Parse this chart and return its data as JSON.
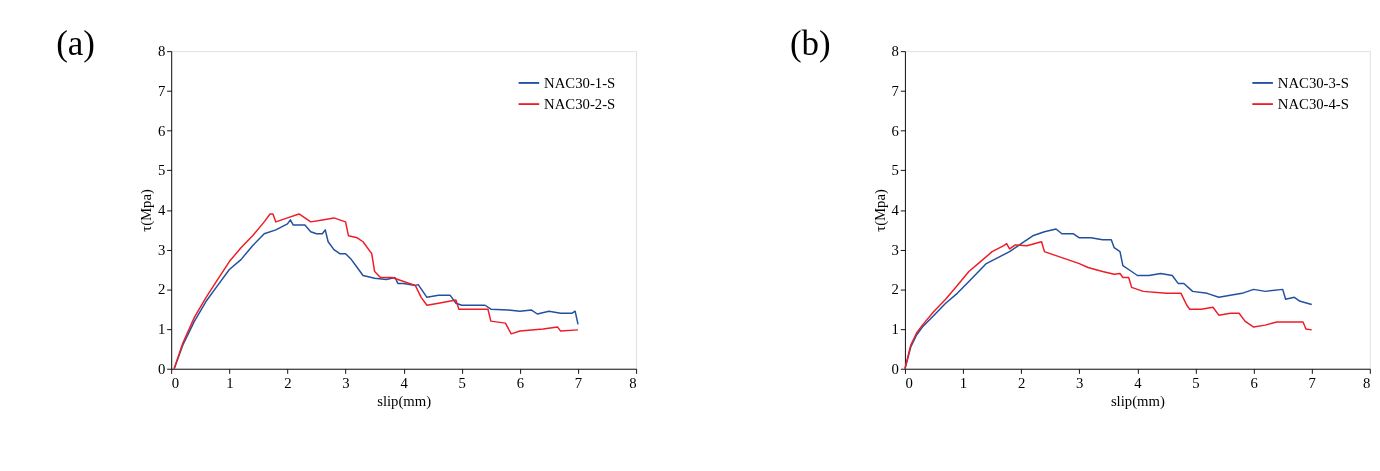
{
  "chart_data": [
    {
      "type": "line",
      "title": "(a)",
      "xlabel": "slip(mm)",
      "ylabel": "τ(Mpa)",
      "xlim": [
        0,
        8
      ],
      "ylim": [
        0,
        8
      ],
      "xticks": [
        0,
        1,
        2,
        3,
        4,
        5,
        6,
        7,
        8
      ],
      "yticks": [
        0,
        1,
        2,
        3,
        4,
        5,
        6,
        7,
        8
      ],
      "grid": false,
      "legend": "top right",
      "marker": "none",
      "line_style": "solid",
      "series": [
        {
          "name": "NAC30-1-S",
          "color": "#2150a0",
          "x": [
            0.05,
            0.2,
            0.4,
            0.6,
            0.8,
            1.0,
            1.2,
            1.4,
            1.6,
            1.8,
            2.0,
            2.05,
            2.1,
            2.3,
            2.4,
            2.5,
            2.6,
            2.65,
            2.7,
            2.8,
            2.9,
            3.0,
            3.1,
            3.2,
            3.3,
            3.5,
            3.7,
            3.85,
            3.9,
            4.0,
            4.2,
            4.25,
            4.4,
            4.6,
            4.8,
            4.9,
            5.0,
            5.2,
            5.4,
            5.5,
            5.8,
            6.0,
            6.2,
            6.3,
            6.5,
            6.7,
            6.9,
            6.95,
            7.0
          ],
          "values": [
            0,
            0.6,
            1.2,
            1.7,
            2.1,
            2.5,
            2.75,
            3.1,
            3.4,
            3.5,
            3.65,
            3.75,
            3.62,
            3.62,
            3.45,
            3.4,
            3.4,
            3.5,
            3.2,
            3.0,
            2.9,
            2.9,
            2.75,
            2.55,
            2.35,
            2.28,
            2.25,
            2.3,
            2.15,
            2.15,
            2.1,
            2.12,
            1.8,
            1.85,
            1.85,
            1.65,
            1.6,
            1.6,
            1.6,
            1.5,
            1.48,
            1.45,
            1.48,
            1.38,
            1.45,
            1.4,
            1.4,
            1.45,
            1.12
          ]
        },
        {
          "name": "NAC30-2-S",
          "color": "#ee1c25",
          "x": [
            0.05,
            0.2,
            0.4,
            0.6,
            0.8,
            1.0,
            1.2,
            1.4,
            1.6,
            1.7,
            1.75,
            1.8,
            1.9,
            2.0,
            2.2,
            2.3,
            2.4,
            2.6,
            2.8,
            3.0,
            3.05,
            3.2,
            3.3,
            3.45,
            3.5,
            3.6,
            3.8,
            3.9,
            4.2,
            4.3,
            4.4,
            4.6,
            4.9,
            4.95,
            5.2,
            5.45,
            5.5,
            5.75,
            5.85,
            6.0,
            6.4,
            6.65,
            6.7,
            7.0
          ],
          "values": [
            0,
            0.65,
            1.3,
            1.8,
            2.25,
            2.7,
            3.05,
            3.35,
            3.7,
            3.9,
            3.9,
            3.7,
            3.75,
            3.8,
            3.9,
            3.8,
            3.7,
            3.75,
            3.8,
            3.7,
            3.35,
            3.3,
            3.2,
            2.9,
            2.45,
            2.3,
            2.3,
            2.25,
            2.1,
            1.8,
            1.6,
            1.65,
            1.73,
            1.5,
            1.5,
            1.5,
            1.2,
            1.15,
            0.88,
            0.95,
            1.0,
            1.05,
            0.95,
            0.98
          ]
        }
      ]
    },
    {
      "type": "line",
      "title": "(b)",
      "xlabel": "slip(mm)",
      "ylabel": "τ(Mpa)",
      "xlim": [
        0,
        8
      ],
      "ylim": [
        0,
        8
      ],
      "xticks": [
        0,
        1,
        2,
        3,
        4,
        5,
        6,
        7,
        8
      ],
      "yticks": [
        0,
        1,
        2,
        3,
        4,
        5,
        6,
        7,
        8
      ],
      "grid": false,
      "legend": "top right",
      "marker": "none",
      "line_style": "solid",
      "series": [
        {
          "name": "NAC30-3-S",
          "color": "#2150a0",
          "x": [
            0,
            0.1,
            0.2,
            0.3,
            0.5,
            0.7,
            0.9,
            1.1,
            1.3,
            1.4,
            1.6,
            1.8,
            2.0,
            2.2,
            2.4,
            2.6,
            2.7,
            2.9,
            3.0,
            3.2,
            3.4,
            3.55,
            3.6,
            3.7,
            3.75,
            3.9,
            4.0,
            4.2,
            4.4,
            4.6,
            4.7,
            4.8,
            4.95,
            5.2,
            5.4,
            5.6,
            5.8,
            6.0,
            6.2,
            6.5,
            6.55,
            6.7,
            6.8,
            7.0
          ],
          "values": [
            0,
            0.55,
            0.85,
            1.05,
            1.35,
            1.65,
            1.9,
            2.2,
            2.5,
            2.65,
            2.8,
            2.95,
            3.15,
            3.35,
            3.45,
            3.52,
            3.4,
            3.4,
            3.3,
            3.3,
            3.25,
            3.25,
            3.05,
            2.95,
            2.6,
            2.45,
            2.35,
            2.35,
            2.4,
            2.35,
            2.15,
            2.15,
            1.95,
            1.9,
            1.8,
            1.85,
            1.9,
            2.0,
            1.95,
            2.0,
            1.75,
            1.8,
            1.7,
            1.62
          ]
        },
        {
          "name": "NAC30-4-S",
          "color": "#ee1c25",
          "x": [
            0,
            0.1,
            0.2,
            0.3,
            0.5,
            0.7,
            0.9,
            1.1,
            1.3,
            1.5,
            1.7,
            1.75,
            1.8,
            1.9,
            2.1,
            2.3,
            2.35,
            2.4,
            2.6,
            2.8,
            3.0,
            3.15,
            3.4,
            3.6,
            3.7,
            3.75,
            3.85,
            3.9,
            4.1,
            4.5,
            4.75,
            4.85,
            4.9,
            5.1,
            5.3,
            5.4,
            5.6,
            5.75,
            5.85,
            6.0,
            6.2,
            6.4,
            6.85,
            6.9,
            7.0
          ],
          "values": [
            0,
            0.6,
            0.9,
            1.1,
            1.45,
            1.75,
            2.1,
            2.45,
            2.7,
            2.95,
            3.1,
            3.15,
            3.02,
            3.12,
            3.1,
            3.18,
            3.2,
            2.95,
            2.85,
            2.75,
            2.65,
            2.55,
            2.45,
            2.38,
            2.4,
            2.3,
            2.3,
            2.05,
            1.95,
            1.9,
            1.9,
            1.6,
            1.5,
            1.5,
            1.55,
            1.35,
            1.4,
            1.4,
            1.2,
            1.05,
            1.1,
            1.18,
            1.18,
            1.0,
            0.98
          ]
        }
      ]
    }
  ]
}
